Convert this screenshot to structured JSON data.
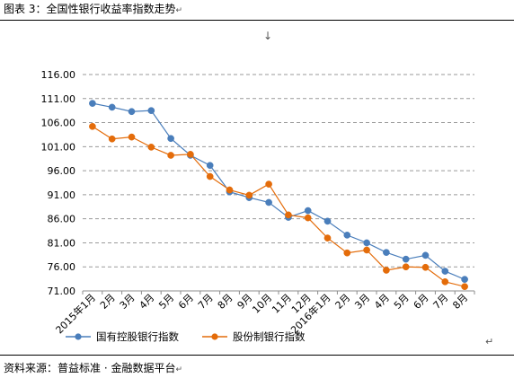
{
  "caption": "图表 3：全国性银行收益率指数走势",
  "return_mark": "↵",
  "down_arrow": "↓",
  "source": "资料来源：普益标准 · 金融数据平台",
  "chart_data": {
    "type": "line",
    "title": "",
    "xlabel": "",
    "ylabel": "",
    "categories": [
      "2015年1月",
      "2月",
      "3月",
      "4月",
      "5月",
      "6月",
      "7月",
      "8月",
      "9月",
      "10月",
      "11月",
      "12月",
      "2016年1月",
      "2月",
      "3月",
      "4月",
      "5月",
      "6月",
      "7月",
      "8月"
    ],
    "ylim": [
      71.0,
      116.0
    ],
    "yticks": [
      "116.00",
      "111.00",
      "106.00",
      "101.00",
      "96.00",
      "91.00",
      "86.00",
      "81.00",
      "76.00",
      "71.00"
    ],
    "grid": "horizontal dashed",
    "legend_position": "bottom",
    "series": [
      {
        "name": "国有控股银行指数",
        "color": "#4a7ebb",
        "values": [
          110.0,
          109.2,
          108.3,
          108.5,
          102.7,
          99.2,
          97.1,
          91.6,
          90.4,
          89.4,
          86.3,
          87.7,
          85.5,
          82.6,
          81.0,
          79.0,
          77.6,
          78.4,
          75.1,
          73.4
        ]
      },
      {
        "name": "股份制银行指数",
        "color": "#e46c0a",
        "values": [
          105.2,
          102.6,
          103.0,
          100.9,
          99.2,
          99.4,
          94.8,
          92.0,
          90.9,
          93.2,
          86.8,
          86.2,
          82.0,
          78.9,
          79.5,
          75.3,
          76.0,
          75.9,
          72.9,
          71.9
        ]
      }
    ]
  }
}
